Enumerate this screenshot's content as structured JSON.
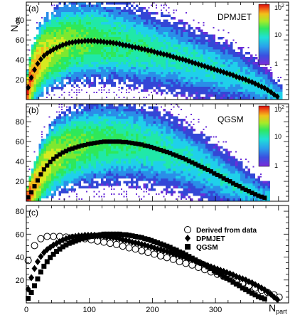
{
  "chart_data": [
    {
      "panel": "(a)",
      "type": "heatmap",
      "model": "DPMJET",
      "xlim": [
        0,
        416
      ],
      "ylim": [
        0,
        98
      ],
      "yticks": [
        20,
        40,
        60,
        80
      ],
      "colorbar": {
        "min_label": "1",
        "mid_label": "10",
        "max_label": "10",
        "max_sup": "2"
      },
      "mean_marker": "diamond",
      "mean_points": [
        [
          3,
          12
        ],
        [
          8,
          22
        ],
        [
          13,
          30
        ],
        [
          18,
          36
        ],
        [
          23,
          40.5
        ],
        [
          28,
          44
        ],
        [
          33,
          46.5
        ],
        [
          38,
          48.5
        ],
        [
          43,
          50.5
        ],
        [
          48,
          52
        ],
        [
          53,
          53.5
        ],
        [
          58,
          55
        ],
        [
          63,
          56
        ],
        [
          68,
          57
        ],
        [
          73,
          57.5
        ],
        [
          78,
          58
        ],
        [
          83,
          58.5
        ],
        [
          88,
          58.5
        ],
        [
          93,
          59
        ],
        [
          98,
          59
        ],
        [
          103,
          59
        ],
        [
          108,
          59
        ],
        [
          113,
          58.5
        ],
        [
          118,
          58.5
        ],
        [
          123,
          58
        ],
        [
          128,
          57.5
        ],
        [
          133,
          57.5
        ],
        [
          138,
          57
        ],
        [
          143,
          56.5
        ],
        [
          148,
          56
        ],
        [
          153,
          55
        ],
        [
          158,
          54.5
        ],
        [
          163,
          54
        ],
        [
          168,
          53
        ],
        [
          173,
          52.5
        ],
        [
          178,
          52
        ],
        [
          183,
          51
        ],
        [
          188,
          50.5
        ],
        [
          193,
          49.5
        ],
        [
          198,
          49
        ],
        [
          203,
          48
        ],
        [
          208,
          47
        ],
        [
          213,
          46.5
        ],
        [
          218,
          45.5
        ],
        [
          223,
          45
        ],
        [
          228,
          44
        ],
        [
          233,
          43
        ],
        [
          238,
          42
        ],
        [
          243,
          41
        ],
        [
          248,
          40.5
        ],
        [
          253,
          39.5
        ],
        [
          258,
          38.5
        ],
        [
          263,
          37.5
        ],
        [
          268,
          36.5
        ],
        [
          273,
          35.5
        ],
        [
          278,
          34.5
        ],
        [
          283,
          33.5
        ],
        [
          288,
          32.5
        ],
        [
          293,
          31.5
        ],
        [
          298,
          30.5
        ],
        [
          303,
          29.5
        ],
        [
          308,
          28.5
        ],
        [
          313,
          27.5
        ],
        [
          318,
          26.5
        ],
        [
          323,
          25.5
        ],
        [
          328,
          24.5
        ],
        [
          333,
          23
        ],
        [
          338,
          22
        ],
        [
          343,
          21
        ],
        [
          348,
          20
        ],
        [
          353,
          18.5
        ],
        [
          358,
          17.5
        ],
        [
          363,
          16
        ],
        [
          368,
          14.5
        ],
        [
          373,
          13
        ],
        [
          378,
          11.5
        ],
        [
          383,
          9.5
        ],
        [
          388,
          7.5
        ],
        [
          393,
          5
        ],
        [
          398,
          3
        ]
      ]
    },
    {
      "panel": "(b)",
      "type": "heatmap",
      "model": "QGSM",
      "xlim": [
        0,
        416
      ],
      "ylim": [
        0,
        98
      ],
      "yticks": [
        20,
        40,
        60,
        80
      ],
      "colorbar": {
        "min_label": "1",
        "mid_label": "10",
        "max_label": "10",
        "max_sup": "2"
      },
      "mean_marker": "square",
      "mean_points": [
        [
          3,
          4
        ],
        [
          8,
          9
        ],
        [
          13,
          15
        ],
        [
          18,
          21
        ],
        [
          23,
          27
        ],
        [
          28,
          32
        ],
        [
          33,
          36
        ],
        [
          38,
          39.5
        ],
        [
          43,
          42.5
        ],
        [
          48,
          45
        ],
        [
          53,
          47
        ],
        [
          58,
          49
        ],
        [
          63,
          50.5
        ],
        [
          68,
          52
        ],
        [
          73,
          53
        ],
        [
          78,
          54
        ],
        [
          83,
          55
        ],
        [
          88,
          56
        ],
        [
          93,
          56.5
        ],
        [
          98,
          57.5
        ],
        [
          103,
          58
        ],
        [
          108,
          58.5
        ],
        [
          113,
          59
        ],
        [
          118,
          59.5
        ],
        [
          123,
          60
        ],
        [
          128,
          60
        ],
        [
          133,
          60
        ],
        [
          138,
          60
        ],
        [
          143,
          60
        ],
        [
          148,
          60
        ],
        [
          153,
          59.5
        ],
        [
          158,
          59.5
        ],
        [
          163,
          59
        ],
        [
          168,
          58.5
        ],
        [
          173,
          58
        ],
        [
          178,
          57.5
        ],
        [
          183,
          57
        ],
        [
          188,
          56
        ],
        [
          193,
          55.5
        ],
        [
          198,
          54.5
        ],
        [
          203,
          53.5
        ],
        [
          208,
          52.5
        ],
        [
          213,
          51.5
        ],
        [
          218,
          50.5
        ],
        [
          223,
          49.5
        ],
        [
          228,
          48.5
        ],
        [
          233,
          47
        ],
        [
          238,
          46
        ],
        [
          243,
          44.5
        ],
        [
          248,
          43.5
        ],
        [
          253,
          42
        ],
        [
          258,
          40.5
        ],
        [
          263,
          39
        ],
        [
          268,
          37.5
        ],
        [
          273,
          36
        ],
        [
          278,
          34.5
        ],
        [
          283,
          33
        ],
        [
          288,
          31.5
        ],
        [
          293,
          30
        ],
        [
          298,
          28
        ],
        [
          303,
          26.5
        ],
        [
          308,
          25
        ],
        [
          313,
          23
        ],
        [
          318,
          21.5
        ],
        [
          323,
          20
        ],
        [
          328,
          18
        ],
        [
          333,
          16.5
        ],
        [
          338,
          15
        ],
        [
          343,
          13
        ],
        [
          348,
          11.5
        ],
        [
          353,
          10
        ],
        [
          358,
          8.5
        ],
        [
          363,
          7
        ],
        [
          368,
          5.5
        ],
        [
          373,
          4.5
        ],
        [
          378,
          3.5
        ]
      ]
    },
    {
      "panel": "(c)",
      "type": "scatter",
      "xlim": [
        0,
        416
      ],
      "ylim": [
        0,
        85
      ],
      "xticks": [
        0,
        100,
        200,
        300
      ],
      "yticks": [
        20,
        40,
        60,
        80
      ],
      "xlabel": "N",
      "xlabel_sub": "part",
      "legend_position": "top-right",
      "series": [
        {
          "name": "Derived from data",
          "marker": "open-circle",
          "x": [
            3,
            13,
            23,
            33,
            43,
            53,
            63,
            73,
            83,
            93,
            103,
            113,
            123,
            133,
            143,
            153,
            163,
            173,
            183,
            193,
            203,
            213,
            223,
            233,
            243,
            253,
            263,
            273,
            283,
            293,
            303,
            313,
            323,
            333,
            343,
            353,
            363,
            373,
            383,
            393,
            401
          ],
          "y": [
            37,
            50,
            56,
            58,
            58,
            58,
            57.5,
            57,
            56.5,
            56,
            55,
            54,
            53,
            52,
            51,
            49.5,
            48,
            47,
            45.5,
            44,
            42.5,
            41,
            39.5,
            38,
            36,
            34.5,
            33,
            31,
            29,
            27,
            25,
            23,
            21,
            19,
            17,
            15,
            13,
            11,
            9,
            7,
            5
          ]
        },
        {
          "name": "DPMJET",
          "marker": "filled-diamond",
          "x": [
            3,
            8,
            13,
            18,
            23,
            28,
            33,
            38,
            43,
            48,
            53,
            58,
            63,
            68,
            73,
            78,
            83,
            88,
            93,
            98,
            103,
            108,
            113,
            118,
            123,
            128,
            133,
            138,
            143,
            148,
            153,
            158,
            163,
            168,
            173,
            178,
            183,
            188,
            193,
            198,
            203,
            208,
            213,
            218,
            223,
            228,
            233,
            238,
            243,
            248,
            253,
            258,
            263,
            268,
            273,
            278,
            283,
            288,
            293,
            298,
            303,
            308,
            313,
            318,
            323,
            328,
            333,
            338,
            343,
            348,
            353,
            358,
            363,
            368,
            373,
            378,
            383,
            388,
            393,
            398
          ],
          "y": [
            12,
            22,
            30,
            36,
            40.5,
            44,
            46.5,
            48.5,
            50.5,
            52,
            53.5,
            55,
            56,
            57,
            57.5,
            58,
            58.5,
            58.5,
            59,
            59,
            59,
            59,
            58.5,
            58.5,
            58,
            57.5,
            57.5,
            57,
            56.5,
            56,
            55,
            54.5,
            54,
            53,
            52.5,
            52,
            51,
            50.5,
            49.5,
            49,
            48,
            47,
            46.5,
            45.5,
            45,
            44,
            43,
            42,
            41,
            40.5,
            39.5,
            38.5,
            37.5,
            36.5,
            35.5,
            34.5,
            33.5,
            32.5,
            31.5,
            30.5,
            29.5,
            28.5,
            27.5,
            26.5,
            25.5,
            24.5,
            23,
            22,
            21,
            20,
            18.5,
            17.5,
            16,
            14.5,
            13,
            11.5,
            9.5,
            7.5,
            5,
            3
          ]
        },
        {
          "name": "QGSM",
          "marker": "filled-square",
          "x": [
            3,
            8,
            13,
            18,
            23,
            28,
            33,
            38,
            43,
            48,
            53,
            58,
            63,
            68,
            73,
            78,
            83,
            88,
            93,
            98,
            103,
            108,
            113,
            118,
            123,
            128,
            133,
            138,
            143,
            148,
            153,
            158,
            163,
            168,
            173,
            178,
            183,
            188,
            193,
            198,
            203,
            208,
            213,
            218,
            223,
            228,
            233,
            238,
            243,
            248,
            253,
            258,
            263,
            268,
            273,
            278,
            283,
            288,
            293,
            298,
            303,
            308,
            313,
            318,
            323,
            328,
            333,
            338,
            343,
            348,
            353,
            358,
            363,
            368,
            373,
            378
          ],
          "y": [
            4,
            9,
            15,
            21,
            27,
            32,
            36,
            39.5,
            42.5,
            45,
            47,
            49,
            50.5,
            52,
            53,
            54,
            55,
            56,
            56.5,
            57.5,
            58,
            58.5,
            59,
            59.5,
            60,
            60,
            60,
            60,
            60,
            60,
            59.5,
            59.5,
            59,
            58.5,
            58,
            57.5,
            57,
            56,
            55.5,
            54.5,
            53.5,
            52.5,
            51.5,
            50.5,
            49.5,
            48.5,
            47,
            46,
            44.5,
            43.5,
            42,
            40.5,
            39,
            37.5,
            36,
            34.5,
            33,
            31.5,
            30,
            28,
            26.5,
            25,
            23,
            21.5,
            20,
            18,
            16.5,
            15,
            13,
            11.5,
            10,
            8.5,
            7,
            5.5,
            4.5,
            3.5
          ]
        }
      ]
    }
  ],
  "yaxis_title": "N",
  "yaxis_title_sub": "ch.",
  "palette": [
    "#6a2fd8",
    "#3347d6",
    "#2a8ee8",
    "#1fd0ea",
    "#20e8a8",
    "#2ee85a",
    "#7de830",
    "#d6ea20",
    "#f2b81a",
    "#f26018",
    "#e01010"
  ]
}
